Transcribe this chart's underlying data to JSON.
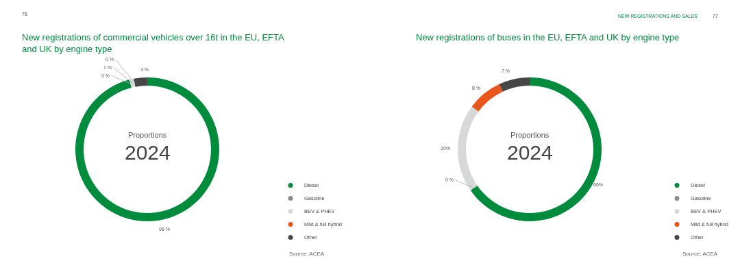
{
  "chart_data": [
    {
      "type": "donut",
      "title": "New registrations of commercial vehicles over 16t in the EU, EFTA\nand UK by engine type",
      "categories": [
        "Diesel",
        "Gasoline",
        "BEV & PHEV",
        "Mild & full hybrid",
        "Other"
      ],
      "values": [
        96,
        0,
        1,
        0,
        3
      ],
      "value_labels": [
        "96 %",
        "0 %",
        "1 %",
        "0 %",
        "3 %"
      ],
      "colors": [
        "#008c3c",
        "#8c8c8c",
        "#d7d9d8",
        "#e8561e",
        "#474747"
      ],
      "legend": "bottom right",
      "annotations": [
        "76",
        "Proportions",
        "2024",
        "Source: ACEA"
      ]
    },
    {
      "type": "donut",
      "title": "New registrations of buses in the EU, EFTA and UK by engine type",
      "categories": [
        "Diesel",
        "Gasoline",
        "BEV & PHEV",
        "Mild & full hybrid",
        "Other"
      ],
      "values": [
        66,
        0,
        20,
        8,
        7
      ],
      "value_labels": [
        "66%",
        "0 %",
        "20%",
        "8 %",
        "7 %"
      ],
      "colors": [
        "#008c3c",
        "#8c8c8c",
        "#d7d9d8",
        "#e8561e",
        "#474747"
      ],
      "legend": "bottom right",
      "annotations": [
        "NEW REGISTRATIONS AND SALES",
        "77",
        "Proportions",
        "2024",
        "Source: ACEA"
      ]
    }
  ]
}
